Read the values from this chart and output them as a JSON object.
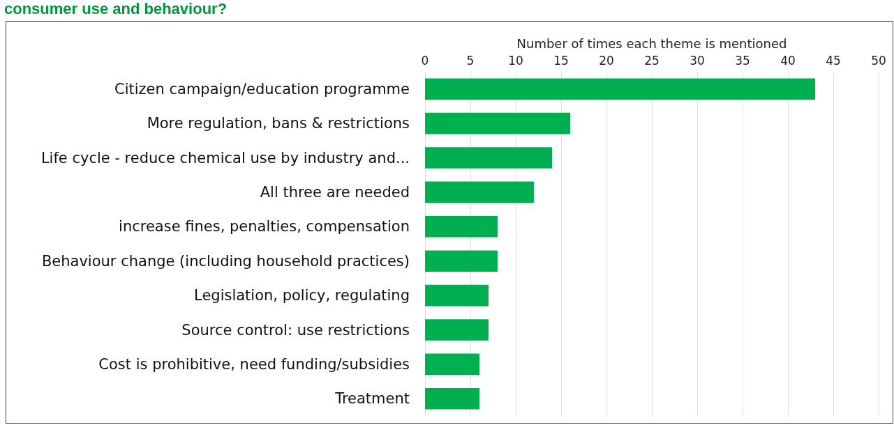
{
  "chart_data": {
    "type": "bar",
    "orientation": "horizontal",
    "title": "consumer use and behaviour?",
    "xlabel": "Number of times each theme is mentioned",
    "categories": [
      "Citizen campaign/education programme",
      "More regulation, bans & restrictions",
      "Life cycle - reduce chemical use by industry and...",
      "All three are needed",
      "increase fines, penalties, compensation",
      "Behaviour change (including household practices)",
      "Legislation, policy, regulating",
      "Source control: use restrictions",
      "Cost is prohibitive, need funding/subsidies",
      "Treatment"
    ],
    "values": [
      43,
      16,
      14,
      12,
      8,
      8,
      7,
      7,
      6,
      6
    ],
    "color": "#00b050",
    "xlim": [
      0,
      50
    ],
    "xticks": [
      0,
      5,
      10,
      15,
      20,
      25,
      30,
      35,
      40,
      45,
      50
    ],
    "grid": "x"
  }
}
